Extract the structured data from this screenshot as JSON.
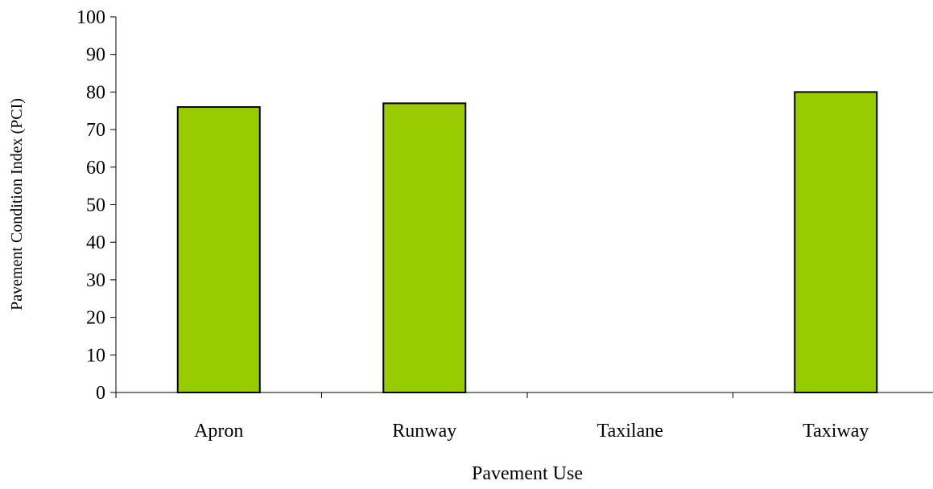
{
  "chart_data": {
    "type": "bar",
    "title": "",
    "xlabel": "Pavement Use",
    "ylabel": "Pavement Condition Index (PCI)",
    "categories": [
      "Apron",
      "Runway",
      "Taxilane",
      "Taxiway"
    ],
    "values": [
      76,
      77,
      0,
      80
    ],
    "ylim": [
      0,
      100
    ],
    "yticks": [
      0,
      10,
      20,
      30,
      40,
      50,
      60,
      70,
      80,
      90,
      100
    ],
    "grid": false,
    "legend": "none",
    "bar_color": "#99CC00",
    "bar_edge_color": "#000000"
  }
}
